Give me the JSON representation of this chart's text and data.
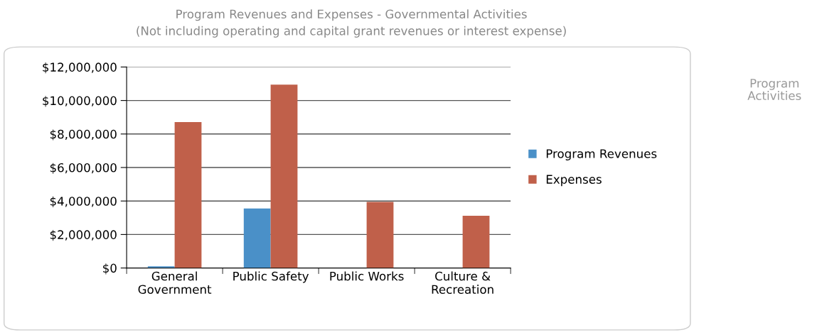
{
  "chart_data": {
    "type": "bar",
    "title": "Program Revenues and Expenses - Governmental Activities",
    "subtitle": "(Not including operating and capital grant revenues or interest expense)",
    "categories": [
      "General\nGovernment",
      "Public Safety",
      "Public Works",
      "Culture &\nRecreation"
    ],
    "series": [
      {
        "name": "Program Revenues",
        "color": "#4a90c8",
        "values": [
          100000,
          3550000,
          0,
          0
        ]
      },
      {
        "name": "Expenses",
        "color": "#c0604a",
        "values": [
          8710000,
          10950000,
          3940000,
          3120000
        ]
      }
    ],
    "ylim": [
      0,
      12000000
    ],
    "yticks": [
      {
        "value": 0,
        "label": "$0"
      },
      {
        "value": 2000000,
        "label": "$2,000,000"
      },
      {
        "value": 4000000,
        "label": "$4,000,000"
      },
      {
        "value": 6000000,
        "label": "$6,000,000"
      },
      {
        "value": 8000000,
        "label": "$8,000,000"
      },
      {
        "value": 10000000,
        "label": "$10,000,000"
      },
      {
        "value": 12000000,
        "label": "$12,000,000"
      }
    ],
    "grid": "y",
    "legend": "right",
    "annotations": [
      "Program\nActivities"
    ]
  }
}
